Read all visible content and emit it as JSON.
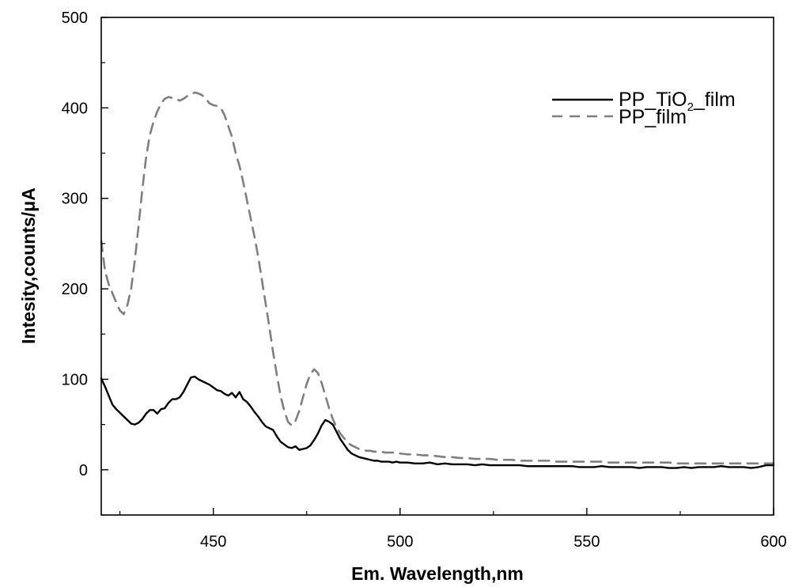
{
  "chart_data": {
    "type": "line",
    "title": "",
    "xlabel": "Em. Wavelength,nm",
    "ylabel": "Intesity,counts/μA",
    "xlim": [
      420,
      600
    ],
    "ylim": [
      -50,
      500
    ],
    "x_ticks": [
      450,
      500,
      550,
      600
    ],
    "y_ticks": [
      0,
      100,
      200,
      300,
      400,
      500
    ],
    "x_tick_labels": [
      "450",
      "500",
      "550",
      "600"
    ],
    "y_tick_labels": [
      "0",
      "100",
      "200",
      "300",
      "400",
      "500"
    ],
    "legend_position": "top-right",
    "grid": false,
    "series": [
      {
        "name": "PP_TiO2_film",
        "legend_main_1": "PP_TiO",
        "legend_sub": "2",
        "legend_main_2": "_film",
        "color": "#000000",
        "style": "solid",
        "x": [
          420,
          421,
          422,
          423,
          424,
          425,
          426,
          427,
          428,
          429,
          430,
          431,
          432,
          433,
          434,
          435,
          436,
          437,
          438,
          439,
          440,
          441,
          442,
          443,
          444,
          445,
          446,
          447,
          448,
          449,
          450,
          451,
          452,
          453,
          454,
          455,
          456,
          457,
          458,
          459,
          460,
          461,
          462,
          463,
          464,
          465,
          466,
          467,
          468,
          469,
          470,
          471,
          472,
          473,
          474,
          475,
          476,
          477,
          478,
          479,
          480,
          481,
          482,
          483,
          484,
          485,
          486,
          487,
          488,
          489,
          490,
          491,
          492,
          493,
          494,
          495,
          496,
          497,
          498,
          499,
          500,
          502,
          504,
          506,
          508,
          510,
          512,
          514,
          516,
          518,
          520,
          522,
          524,
          526,
          528,
          530,
          532,
          534,
          536,
          538,
          540,
          542,
          544,
          546,
          548,
          550,
          552,
          554,
          556,
          558,
          560,
          562,
          564,
          566,
          568,
          570,
          572,
          574,
          576,
          578,
          580,
          582,
          584,
          586,
          588,
          590,
          592,
          594,
          596,
          598,
          600
        ],
        "values": [
          101,
          92,
          82,
          72,
          67,
          63,
          59,
          55,
          51,
          50,
          52,
          56,
          62,
          66,
          66,
          62,
          67,
          68,
          74,
          78,
          78,
          80,
          86,
          94,
          102,
          103,
          100,
          98,
          96,
          94,
          91,
          88,
          87,
          84,
          82,
          85,
          80,
          86,
          78,
          75,
          70,
          64,
          59,
          53,
          48,
          46,
          44,
          37,
          31,
          28,
          25,
          24,
          26,
          22,
          23,
          24,
          27,
          33,
          40,
          49,
          55,
          53,
          50,
          42,
          34,
          28,
          22,
          18,
          16,
          14,
          13,
          12,
          11,
          10,
          10,
          9,
          9,
          9,
          8,
          9,
          8,
          8,
          7,
          7,
          8,
          6,
          7,
          6,
          6,
          6,
          5,
          6,
          5,
          5,
          5,
          5,
          5,
          4,
          4,
          4,
          4,
          4,
          4,
          4,
          3,
          3,
          3,
          4,
          3,
          3,
          3,
          3,
          2,
          3,
          3,
          3,
          2,
          2,
          3,
          2,
          3,
          3,
          3,
          4,
          3,
          3,
          3,
          2,
          3,
          5,
          5
        ]
      },
      {
        "name": "PP_film",
        "legend_main_1": "PP_film",
        "legend_sub": "",
        "legend_main_2": "",
        "color": "#7f7f7f",
        "style": "dashed",
        "x": [
          420,
          421,
          422,
          423,
          424,
          425,
          426,
          427,
          428,
          429,
          430,
          431,
          432,
          433,
          434,
          435,
          436,
          437,
          438,
          439,
          440,
          441,
          442,
          443,
          444,
          445,
          446,
          447,
          448,
          449,
          450,
          451,
          452,
          453,
          454,
          455,
          456,
          457,
          458,
          459,
          460,
          461,
          462,
          463,
          464,
          465,
          466,
          467,
          468,
          469,
          470,
          471,
          472,
          473,
          474,
          475,
          476,
          477,
          478,
          479,
          480,
          481,
          482,
          483,
          484,
          485,
          486,
          487,
          488,
          489,
          490,
          491,
          492,
          493,
          494,
          495,
          496,
          497,
          498,
          499,
          500,
          502,
          504,
          506,
          508,
          510,
          512,
          514,
          516,
          518,
          520,
          522,
          524,
          526,
          528,
          530,
          532,
          534,
          536,
          538,
          540,
          542,
          544,
          546,
          548,
          550,
          552,
          554,
          556,
          558,
          560,
          562,
          564,
          566,
          568,
          570,
          572,
          574,
          576,
          578,
          580,
          582,
          584,
          586,
          588,
          590,
          592,
          594,
          596,
          598,
          600
        ],
        "values": [
          253,
          220,
          205,
          195,
          185,
          176,
          172,
          182,
          200,
          232,
          270,
          310,
          345,
          370,
          385,
          396,
          405,
          410,
          412,
          411,
          410,
          408,
          410,
          413,
          415,
          417,
          416,
          414,
          410,
          405,
          403,
          402,
          400,
          392,
          380,
          368,
          350,
          336,
          318,
          298,
          278,
          258,
          236,
          210,
          184,
          158,
          130,
          105,
          82,
          65,
          53,
          49,
          54,
          65,
          80,
          95,
          106,
          111,
          107,
          96,
          82,
          68,
          56,
          47,
          40,
          35,
          30,
          27,
          25,
          23,
          22,
          21,
          21,
          20,
          20,
          20,
          19,
          19,
          19,
          18,
          18,
          17,
          17,
          16,
          16,
          15,
          14,
          14,
          13,
          13,
          12,
          12,
          12,
          11,
          11,
          11,
          10,
          10,
          10,
          10,
          10,
          9,
          9,
          9,
          9,
          9,
          9,
          9,
          8,
          8,
          8,
          8,
          8,
          8,
          8,
          8,
          8,
          7,
          7,
          7,
          7,
          7,
          7,
          7,
          7,
          7,
          7,
          7,
          7,
          7,
          7
        ]
      }
    ]
  }
}
